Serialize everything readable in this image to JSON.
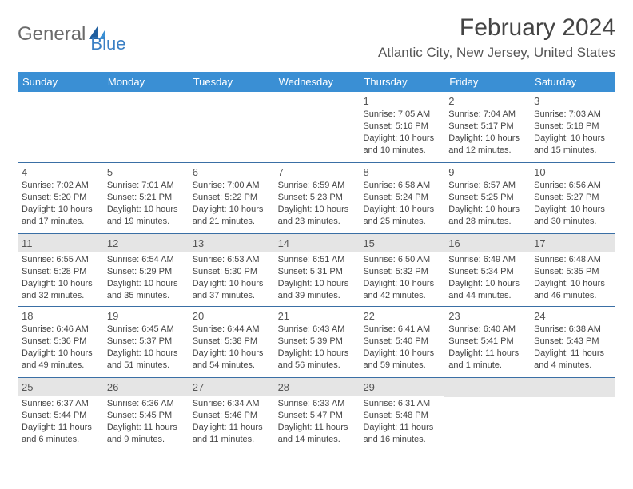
{
  "logo": {
    "part1": "General",
    "part2": "Blue"
  },
  "title": "February 2024",
  "location": "Atlantic City, New Jersey, United States",
  "colors": {
    "header_bg": "#3a8fd4",
    "header_text": "#ffffff",
    "row_border": "#3a6fa5",
    "shaded_bg": "#e5e5e5",
    "logo_gray": "#6a6a6a",
    "logo_blue": "#3a7fc4"
  },
  "day_names": [
    "Sunday",
    "Monday",
    "Tuesday",
    "Wednesday",
    "Thursday",
    "Friday",
    "Saturday"
  ],
  "weeks": [
    [
      {
        "n": "",
        "sr": "",
        "ss": "",
        "dl": ""
      },
      {
        "n": "",
        "sr": "",
        "ss": "",
        "dl": ""
      },
      {
        "n": "",
        "sr": "",
        "ss": "",
        "dl": ""
      },
      {
        "n": "",
        "sr": "",
        "ss": "",
        "dl": ""
      },
      {
        "n": "1",
        "sr": "Sunrise: 7:05 AM",
        "ss": "Sunset: 5:16 PM",
        "dl": "Daylight: 10 hours and 10 minutes."
      },
      {
        "n": "2",
        "sr": "Sunrise: 7:04 AM",
        "ss": "Sunset: 5:17 PM",
        "dl": "Daylight: 10 hours and 12 minutes."
      },
      {
        "n": "3",
        "sr": "Sunrise: 7:03 AM",
        "ss": "Sunset: 5:18 PM",
        "dl": "Daylight: 10 hours and 15 minutes."
      }
    ],
    [
      {
        "n": "4",
        "sr": "Sunrise: 7:02 AM",
        "ss": "Sunset: 5:20 PM",
        "dl": "Daylight: 10 hours and 17 minutes."
      },
      {
        "n": "5",
        "sr": "Sunrise: 7:01 AM",
        "ss": "Sunset: 5:21 PM",
        "dl": "Daylight: 10 hours and 19 minutes."
      },
      {
        "n": "6",
        "sr": "Sunrise: 7:00 AM",
        "ss": "Sunset: 5:22 PM",
        "dl": "Daylight: 10 hours and 21 minutes."
      },
      {
        "n": "7",
        "sr": "Sunrise: 6:59 AM",
        "ss": "Sunset: 5:23 PM",
        "dl": "Daylight: 10 hours and 23 minutes."
      },
      {
        "n": "8",
        "sr": "Sunrise: 6:58 AM",
        "ss": "Sunset: 5:24 PM",
        "dl": "Daylight: 10 hours and 25 minutes."
      },
      {
        "n": "9",
        "sr": "Sunrise: 6:57 AM",
        "ss": "Sunset: 5:25 PM",
        "dl": "Daylight: 10 hours and 28 minutes."
      },
      {
        "n": "10",
        "sr": "Sunrise: 6:56 AM",
        "ss": "Sunset: 5:27 PM",
        "dl": "Daylight: 10 hours and 30 minutes."
      }
    ],
    [
      {
        "n": "11",
        "sr": "Sunrise: 6:55 AM",
        "ss": "Sunset: 5:28 PM",
        "dl": "Daylight: 10 hours and 32 minutes."
      },
      {
        "n": "12",
        "sr": "Sunrise: 6:54 AM",
        "ss": "Sunset: 5:29 PM",
        "dl": "Daylight: 10 hours and 35 minutes."
      },
      {
        "n": "13",
        "sr": "Sunrise: 6:53 AM",
        "ss": "Sunset: 5:30 PM",
        "dl": "Daylight: 10 hours and 37 minutes."
      },
      {
        "n": "14",
        "sr": "Sunrise: 6:51 AM",
        "ss": "Sunset: 5:31 PM",
        "dl": "Daylight: 10 hours and 39 minutes."
      },
      {
        "n": "15",
        "sr": "Sunrise: 6:50 AM",
        "ss": "Sunset: 5:32 PM",
        "dl": "Daylight: 10 hours and 42 minutes."
      },
      {
        "n": "16",
        "sr": "Sunrise: 6:49 AM",
        "ss": "Sunset: 5:34 PM",
        "dl": "Daylight: 10 hours and 44 minutes."
      },
      {
        "n": "17",
        "sr": "Sunrise: 6:48 AM",
        "ss": "Sunset: 5:35 PM",
        "dl": "Daylight: 10 hours and 46 minutes."
      }
    ],
    [
      {
        "n": "18",
        "sr": "Sunrise: 6:46 AM",
        "ss": "Sunset: 5:36 PM",
        "dl": "Daylight: 10 hours and 49 minutes."
      },
      {
        "n": "19",
        "sr": "Sunrise: 6:45 AM",
        "ss": "Sunset: 5:37 PM",
        "dl": "Daylight: 10 hours and 51 minutes."
      },
      {
        "n": "20",
        "sr": "Sunrise: 6:44 AM",
        "ss": "Sunset: 5:38 PM",
        "dl": "Daylight: 10 hours and 54 minutes."
      },
      {
        "n": "21",
        "sr": "Sunrise: 6:43 AM",
        "ss": "Sunset: 5:39 PM",
        "dl": "Daylight: 10 hours and 56 minutes."
      },
      {
        "n": "22",
        "sr": "Sunrise: 6:41 AM",
        "ss": "Sunset: 5:40 PM",
        "dl": "Daylight: 10 hours and 59 minutes."
      },
      {
        "n": "23",
        "sr": "Sunrise: 6:40 AM",
        "ss": "Sunset: 5:41 PM",
        "dl": "Daylight: 11 hours and 1 minute."
      },
      {
        "n": "24",
        "sr": "Sunrise: 6:38 AM",
        "ss": "Sunset: 5:43 PM",
        "dl": "Daylight: 11 hours and 4 minutes."
      }
    ],
    [
      {
        "n": "25",
        "sr": "Sunrise: 6:37 AM",
        "ss": "Sunset: 5:44 PM",
        "dl": "Daylight: 11 hours and 6 minutes."
      },
      {
        "n": "26",
        "sr": "Sunrise: 6:36 AM",
        "ss": "Sunset: 5:45 PM",
        "dl": "Daylight: 11 hours and 9 minutes."
      },
      {
        "n": "27",
        "sr": "Sunrise: 6:34 AM",
        "ss": "Sunset: 5:46 PM",
        "dl": "Daylight: 11 hours and 11 minutes."
      },
      {
        "n": "28",
        "sr": "Sunrise: 6:33 AM",
        "ss": "Sunset: 5:47 PM",
        "dl": "Daylight: 11 hours and 14 minutes."
      },
      {
        "n": "29",
        "sr": "Sunrise: 6:31 AM",
        "ss": "Sunset: 5:48 PM",
        "dl": "Daylight: 11 hours and 16 minutes."
      },
      {
        "n": "",
        "sr": "",
        "ss": "",
        "dl": ""
      },
      {
        "n": "",
        "sr": "",
        "ss": "",
        "dl": ""
      }
    ]
  ],
  "shaded_weeks": [
    2,
    4
  ]
}
